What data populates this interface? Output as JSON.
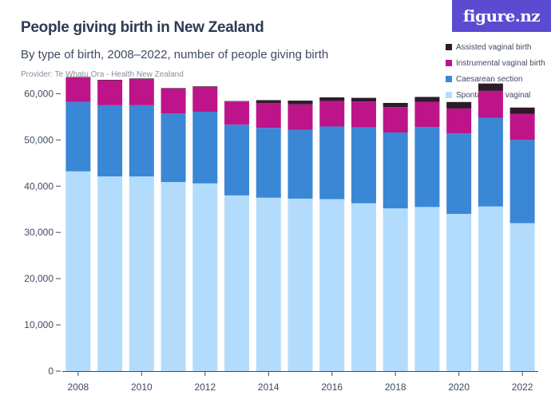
{
  "header": {
    "title": "People giving birth in New Zealand",
    "subtitle": "By type of birth, 2008–2022, number of people giving birth",
    "provider": "Provider: Te Whatu Ora - Health New Zealand",
    "brand": "figure.nz"
  },
  "colors": {
    "spontaneous": "#b3dcfc",
    "caesarean": "#3a87d6",
    "instrumental": "#bd1489",
    "assisted": "#2f1a2b",
    "brand": "#5a4bd1"
  },
  "chart_data": {
    "type": "bar",
    "stacked": true,
    "categories": [
      "2008",
      "2009",
      "2010",
      "2011",
      "2012",
      "2013",
      "2014",
      "2015",
      "2016",
      "2017",
      "2018",
      "2019",
      "2020",
      "2021",
      "2022"
    ],
    "x_tick_labels": [
      "2008",
      "2010",
      "2012",
      "2014",
      "2016",
      "2018",
      "2020",
      "2022"
    ],
    "ylim": [
      0,
      63000
    ],
    "y_ticks": [
      0,
      10000,
      20000,
      30000,
      40000,
      50000,
      60000
    ],
    "y_tick_labels": [
      "0",
      "10,000",
      "20,000",
      "30,000",
      "40,000",
      "50,000",
      "60,000"
    ],
    "grid": false,
    "legend_position": "top-right",
    "series": [
      {
        "key": "spontaneous",
        "name": "Spontaneous vaginal",
        "values": [
          43200,
          42100,
          42100,
          40900,
          40600,
          38000,
          37500,
          37300,
          37200,
          36300,
          35200,
          35500,
          34000,
          35600,
          32000
        ]
      },
      {
        "key": "caesarean",
        "name": "Caesarean section",
        "values": [
          15000,
          15400,
          15400,
          14800,
          15500,
          15300,
          15100,
          14900,
          15700,
          16400,
          16400,
          17300,
          17400,
          19200,
          18000
        ]
      },
      {
        "key": "instrumental",
        "name": "Instrumental vaginal birth",
        "values": [
          5300,
          5400,
          5700,
          5400,
          5400,
          5000,
          5400,
          5500,
          5500,
          5600,
          5500,
          5400,
          5400,
          5800,
          5600
        ]
      },
      {
        "key": "assisted",
        "name": "Assisted vaginal birth",
        "values": [
          100,
          100,
          100,
          100,
          100,
          100,
          600,
          800,
          800,
          800,
          900,
          1100,
          1400,
          1600,
          1400
        ]
      }
    ]
  }
}
